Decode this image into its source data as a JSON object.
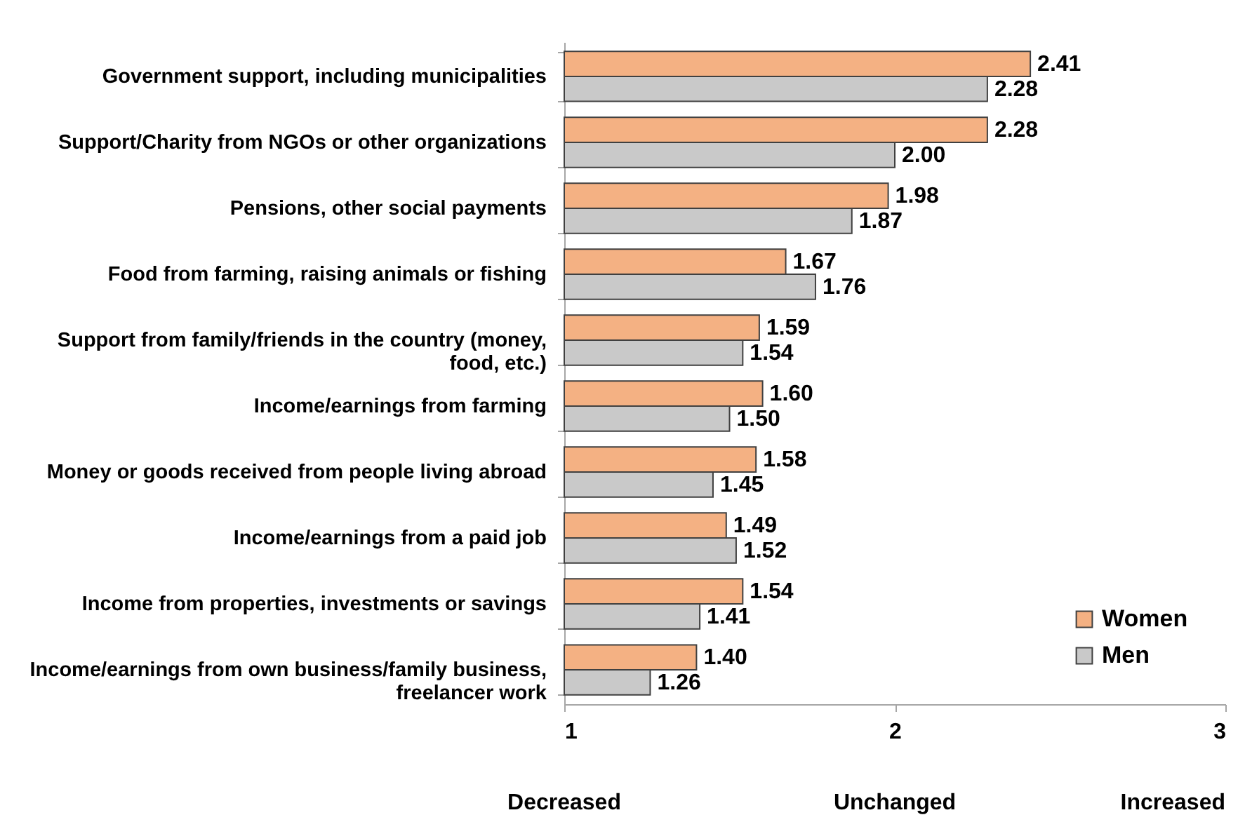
{
  "chart_data": {
    "type": "bar",
    "orientation": "horizontal",
    "categories": [
      "Government support, including municipalities",
      "Support/Charity from NGOs or other organizations",
      "Pensions, other social payments",
      "Food from farming, raising animals or fishing",
      "Support from family/friends in the country (money, food, etc.)",
      "Income/earnings from farming",
      "Money or goods received from people living abroad",
      "Income/earnings from a paid job",
      "Income from properties, investments or savings",
      "Income/earnings from own business/family business, freelancer work"
    ],
    "series": [
      {
        "name": "Women",
        "color": "#f4b183",
        "values": [
          2.41,
          2.28,
          1.98,
          1.67,
          1.59,
          1.6,
          1.58,
          1.49,
          1.54,
          1.4
        ],
        "value_labels": [
          "2.41",
          "2.28",
          "1.98",
          "1.67",
          "1.59",
          "1.60",
          "1.58",
          "1.49",
          "1.54",
          "1.40"
        ]
      },
      {
        "name": "Men",
        "color": "#c9c9c9",
        "values": [
          2.28,
          2.0,
          1.87,
          1.76,
          1.54,
          1.5,
          1.45,
          1.52,
          1.41,
          1.26
        ],
        "value_labels": [
          "2.28",
          "2.00",
          "1.87",
          "1.76",
          "1.54",
          "1.50",
          "1.45",
          "1.52",
          "1.41",
          "1.26"
        ]
      }
    ],
    "xlim": [
      1,
      3
    ],
    "xticks": [
      1,
      2,
      3
    ],
    "legend": "bottom right",
    "grid": false,
    "annotations": [
      "Decreased",
      "Unchanged",
      "Increased"
    ]
  }
}
